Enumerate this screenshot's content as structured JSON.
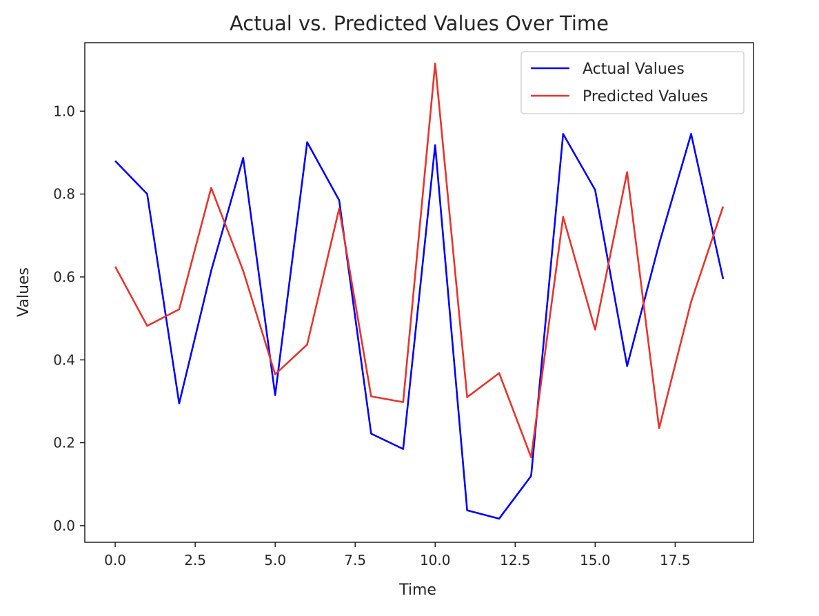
{
  "chart_data": {
    "type": "line",
    "title": "Actual vs. Predicted Values Over Time",
    "xlabel": "Time",
    "ylabel": "Values",
    "xlim": [
      -0.95,
      19.95
    ],
    "ylim": [
      -0.04,
      1.165
    ],
    "xticks": [
      0.0,
      2.5,
      5.0,
      7.5,
      10.0,
      12.5,
      15.0,
      17.5
    ],
    "xtick_labels": [
      "0.0",
      "2.5",
      "5.0",
      "7.5",
      "10.0",
      "12.5",
      "15.0",
      "17.5"
    ],
    "yticks": [
      0.0,
      0.2,
      0.4,
      0.6,
      0.8,
      1.0
    ],
    "ytick_labels": [
      "0.0",
      "0.2",
      "0.4",
      "0.6",
      "0.8",
      "1.0"
    ],
    "grid": false,
    "legend_position": "top-right",
    "x": [
      0,
      1,
      2,
      3,
      4,
      5,
      6,
      7,
      8,
      9,
      10,
      11,
      12,
      13,
      14,
      15,
      16,
      17,
      18,
      19
    ],
    "series": [
      {
        "name": "Actual Values",
        "color": "#0000ff",
        "values": [
          0.88,
          0.8,
          0.295,
          0.615,
          0.887,
          0.315,
          0.925,
          0.785,
          0.222,
          0.185,
          0.918,
          0.037,
          0.017,
          0.12,
          0.945,
          0.81,
          0.385,
          0.68,
          0.945,
          0.595
        ]
      },
      {
        "name": "Predicted Values",
        "color": "#e8332b",
        "values": [
          0.625,
          0.482,
          0.522,
          0.815,
          0.615,
          0.365,
          0.437,
          0.765,
          0.312,
          0.298,
          1.115,
          0.31,
          0.368,
          0.165,
          0.745,
          0.473,
          0.853,
          0.235,
          0.54,
          0.77
        ]
      }
    ]
  }
}
